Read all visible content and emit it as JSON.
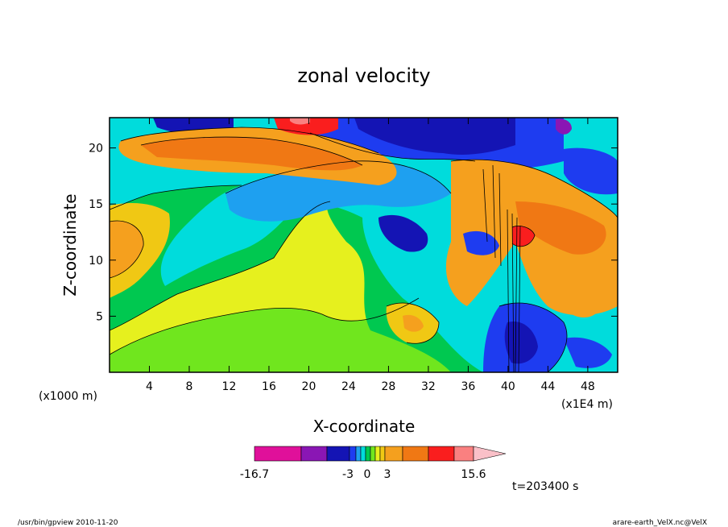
{
  "chart_data": {
    "type": "heatmap",
    "title": "zonal velocity",
    "xlabel": "X-coordinate",
    "ylabel": "Z-coordinate",
    "x_unit_left": "(x1000 m)",
    "x_unit_right": "(x1E4 m)",
    "x_ticks": [
      "4",
      "8",
      "12",
      "16",
      "20",
      "24",
      "28",
      "32",
      "36",
      "40",
      "44",
      "48"
    ],
    "y_ticks": [
      "5",
      "10",
      "15",
      "20"
    ],
    "xlim": [
      0,
      51
    ],
    "ylim": [
      0,
      22.7
    ],
    "colorbar": {
      "labels": [
        "-16.7",
        "-3",
        "0",
        "3",
        "15.6"
      ],
      "range": [
        -16.7,
        15.6
      ],
      "colors": [
        "#e0109a",
        "#8a16b4",
        "#1414b4",
        "#1e3cf0",
        "#1ea0f0",
        "#00dcdc",
        "#00c850",
        "#70e61e",
        "#e6f01e",
        "#f0c814",
        "#f5a01e",
        "#f07814",
        "#fa1e1e",
        "#fa8080",
        "#fac0c8"
      ]
    },
    "annotation": "t=203400 s"
  },
  "footer": {
    "left": "/usr/bin/gpview  2010-11-20",
    "right": "arare-earth_VelX.nc@VelX"
  },
  "colors": {
    "yellow": "#e6f01e",
    "lightgreen": "#70e61e",
    "green": "#00c850",
    "cyan": "#00dcdc",
    "lightblue": "#1ea0f0",
    "blue": "#1e3cf0",
    "darkblue": "#1414b4",
    "purple": "#8a16b4",
    "magenta": "#e0109a",
    "gold": "#f0c814",
    "orange": "#f5a01e",
    "darkorange": "#f07814",
    "red": "#fa1e1e",
    "pink": "#fa8080"
  }
}
